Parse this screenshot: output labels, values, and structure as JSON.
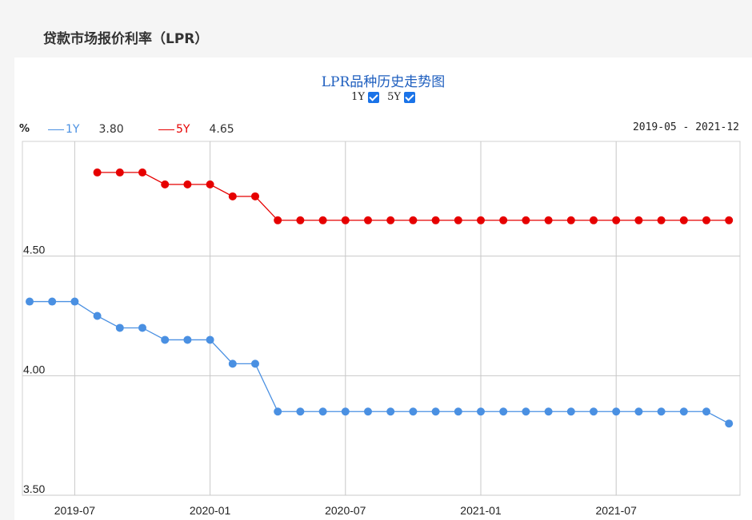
{
  "page_title": "贷款市场报价利率（LPR）",
  "chart_title": "LPR品种历史走势图",
  "toggles": [
    {
      "label": "1Y",
      "checked": true
    },
    {
      "label": "5Y",
      "checked": true
    }
  ],
  "unit_label": "%",
  "date_range": "2019-05 - 2021-12",
  "legend": [
    {
      "name": "1Y",
      "value": "3.80",
      "color": "#4a90e2"
    },
    {
      "name": "5Y",
      "value": "4.65",
      "color": "#e60000"
    }
  ],
  "chart_data": {
    "type": "line",
    "ylim": [
      3.5,
      4.98
    ],
    "yticks": [
      "4.50",
      "4.00",
      "3.50"
    ],
    "xtick_labels": [
      "2019-07",
      "2020-01",
      "2020-07",
      "2021-01",
      "2021-07"
    ],
    "x": [
      "2019-05",
      "2019-06",
      "2019-07",
      "2019-08",
      "2019-09",
      "2019-10",
      "2019-11",
      "2019-12",
      "2020-01",
      "2020-02",
      "2020-03",
      "2020-04",
      "2020-05",
      "2020-06",
      "2020-07",
      "2020-08",
      "2020-09",
      "2020-10",
      "2020-11",
      "2020-12",
      "2021-01",
      "2021-02",
      "2021-03",
      "2021-04",
      "2021-05",
      "2021-06",
      "2021-07",
      "2021-08",
      "2021-09",
      "2021-10",
      "2021-11",
      "2021-12"
    ],
    "series": [
      {
        "name": "1Y",
        "color": "#4a90e2",
        "values": [
          4.31,
          4.31,
          4.31,
          4.25,
          4.2,
          4.2,
          4.15,
          4.15,
          4.15,
          4.05,
          4.05,
          3.85,
          3.85,
          3.85,
          3.85,
          3.85,
          3.85,
          3.85,
          3.85,
          3.85,
          3.85,
          3.85,
          3.85,
          3.85,
          3.85,
          3.85,
          3.85,
          3.85,
          3.85,
          3.85,
          3.85,
          3.8
        ]
      },
      {
        "name": "5Y",
        "color": "#e60000",
        "values": [
          null,
          null,
          null,
          4.85,
          4.85,
          4.85,
          4.8,
          4.8,
          4.8,
          4.75,
          4.75,
          4.65,
          4.65,
          4.65,
          4.65,
          4.65,
          4.65,
          4.65,
          4.65,
          4.65,
          4.65,
          4.65,
          4.65,
          4.65,
          4.65,
          4.65,
          4.65,
          4.65,
          4.65,
          4.65,
          4.65,
          4.65
        ]
      }
    ]
  }
}
